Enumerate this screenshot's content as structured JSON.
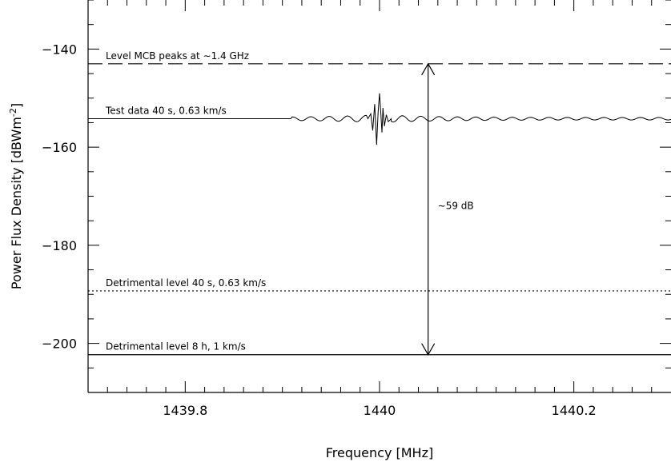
{
  "chart_data": {
    "type": "line",
    "title": "",
    "xlabel": "Frequency [MHz]",
    "ylabel_main": "Power Flux Density [dBWm",
    "ylabel_sup": "-2",
    "ylabel_end": "]",
    "xlim": [
      1439.7,
      1440.3
    ],
    "ylim": [
      -210,
      -130
    ],
    "x_ticks": [
      1439.8,
      1440,
      1440.2
    ],
    "x_tick_labels": [
      "1439.8",
      "1440",
      "1440.2"
    ],
    "y_ticks": [
      -140,
      -160,
      -180,
      -200
    ],
    "y_tick_labels": [
      "−140",
      "−160",
      "−180",
      "−200"
    ],
    "grid": false,
    "series": [
      {
        "label": "Test data 40 s, 0.63 km/s",
        "style": "solid",
        "baseline": -154.2,
        "signal_center": 1440.0,
        "peak_max": -149,
        "peak_min": -159.5
      }
    ],
    "reference_lines": [
      {
        "label": "Level MCB peaks at ∼1.4 GHz",
        "y": -143,
        "style": "dashed"
      },
      {
        "label": "Detrimental level 40 s, 0.63 km/s",
        "y": -189.3,
        "style": "dotted"
      },
      {
        "label": "Detrimental level 8 h, 1 km/s",
        "y": -202.3,
        "style": "solid"
      }
    ],
    "arrow": {
      "x": 1440.05,
      "y_top": -143,
      "y_bottom": -202.3,
      "label": "∼59 dB"
    }
  }
}
